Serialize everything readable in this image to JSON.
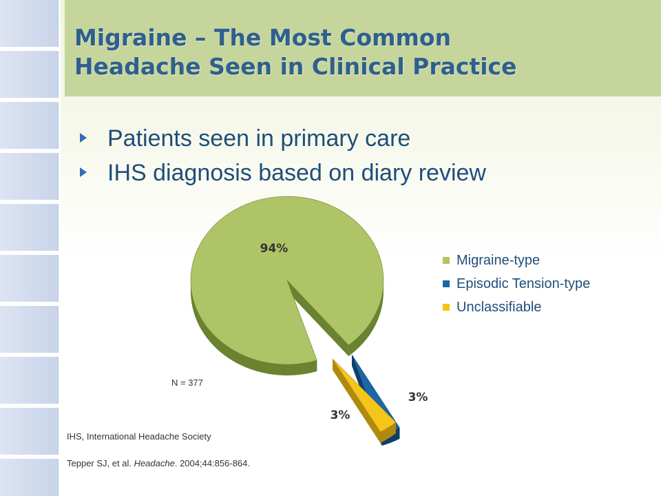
{
  "slide": {
    "title_line1": "Migraine – The Most Common",
    "title_line2": "Headache Seen in Clinical Practice",
    "bullets": [
      "Patients seen in primary care",
      "IHS diagnosis based on diary review"
    ],
    "n_label": "N = 377",
    "footnote_abbrev": "IHS, International Headache Society",
    "citation": {
      "authors": "Tepper SJ, et al. ",
      "journal": "Headache",
      "details": ". 2004;44:856-864."
    },
    "colors": {
      "title_band": "#c5d59b",
      "title_text": "#2e5f8e",
      "bullet_text": "#1f4e79",
      "bullet_marker": "#2f6eb3"
    }
  },
  "chart_data": {
    "type": "pie",
    "title": "",
    "categories": [
      "Migraine-type",
      "Episodic Tension-type",
      "Unclassifiable"
    ],
    "values": [
      94,
      3,
      3
    ],
    "data_labels": [
      "94%",
      "3%",
      "3%"
    ],
    "colors": [
      "#aec466",
      "#1d66a8",
      "#f5c518"
    ],
    "side_colors": [
      "#6b8230",
      "#0f3e68",
      "#b08a10"
    ],
    "legend_position": "right",
    "exploded": [
      "Episodic Tension-type",
      "Unclassifiable"
    ],
    "style": "3d"
  }
}
